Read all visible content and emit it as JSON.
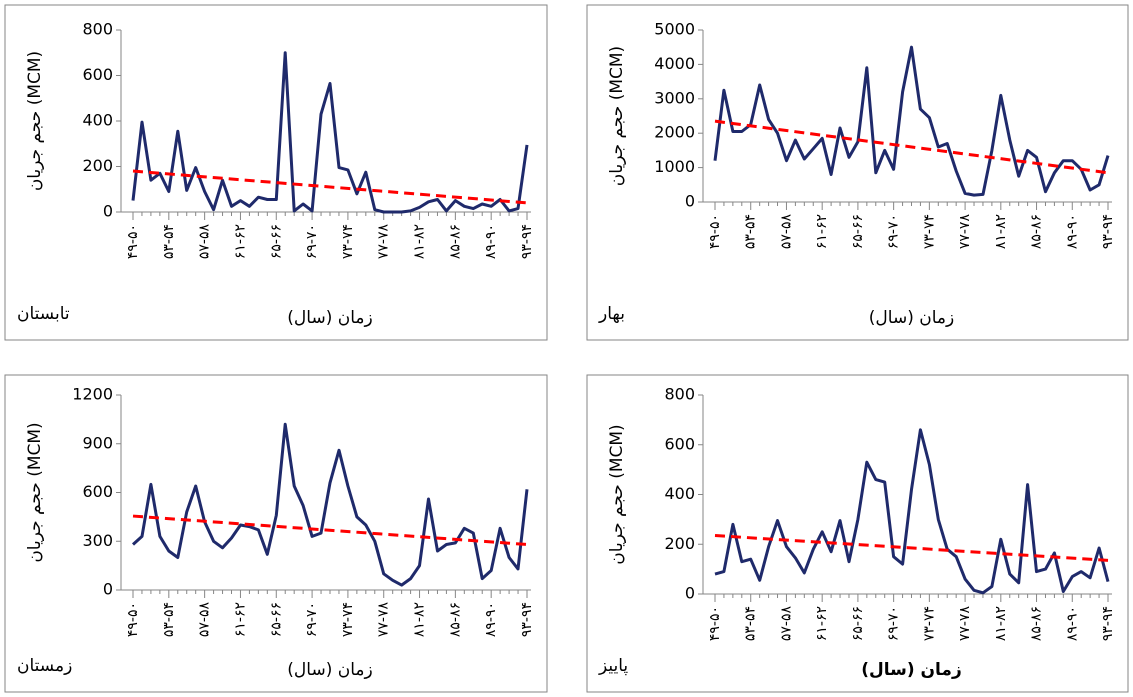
{
  "chart_data": [
    {
      "type": "line",
      "y_label": "حجم جریان (MCM)",
      "x_label": "زمان (سال)",
      "annotation": "تابستان",
      "categories": [
        "۴۹-۵۰",
        null,
        null,
        null,
        "۵۳-۵۴",
        null,
        null,
        null,
        "۵۷-۵۸",
        null,
        null,
        null,
        "۶۱-۶۲",
        null,
        null,
        null,
        "۶۵-۶۶",
        null,
        null,
        null,
        "۶۹-۷۰",
        null,
        null,
        null,
        "۷۳-۷۴",
        null,
        null,
        null,
        "۷۷-۷۸",
        null,
        null,
        null,
        "۸۱-۸۲",
        null,
        null,
        null,
        "۸۵-۸۶",
        null,
        null,
        null,
        "۸۹-۹۰",
        null,
        null,
        null,
        "۹۳-۹۴"
      ],
      "color": "#1f2a6b",
      "values": [
        50,
        395,
        140,
        170,
        90,
        355,
        95,
        195,
        90,
        10,
        140,
        25,
        50,
        25,
        65,
        55,
        55,
        700,
        5,
        35,
        5,
        430,
        565,
        195,
        185,
        80,
        175,
        10,
        0,
        0,
        0,
        5,
        20,
        45,
        55,
        5,
        50,
        25,
        15,
        35,
        25,
        55,
        5,
        15,
        295
      ],
      "trendline": {
        "color": "#ff0000",
        "values": [
          180,
          40
        ]
      },
      "ylim": [
        0,
        800
      ],
      "yticks": [
        0,
        200,
        400,
        600,
        800
      ]
    },
    {
      "type": "line",
      "y_label": "حجم جریان (MCM)",
      "x_label": "زمان (سال)",
      "annotation": "بهار",
      "categories": [
        "۴۹-۵۰",
        null,
        null,
        null,
        "۵۳-۵۴",
        null,
        null,
        null,
        "۵۷-۵۸",
        null,
        null,
        null,
        "۶۱-۶۲",
        null,
        null,
        null,
        "۶۵-۶۶",
        null,
        null,
        null,
        "۶۹-۷۰",
        null,
        null,
        null,
        "۷۳-۷۴",
        null,
        null,
        null,
        "۷۷-۷۸",
        null,
        null,
        null,
        "۸۱-۸۲",
        null,
        null,
        null,
        "۸۵-۸۶",
        null,
        null,
        null,
        "۸۹-۹۰",
        null,
        null,
        null,
        "۹۳-۹۴"
      ],
      "color": "#1f2a6b",
      "values": [
        1200,
        3250,
        2050,
        2050,
        2250,
        3400,
        2400,
        2000,
        1200,
        1800,
        1250,
        1550,
        1850,
        800,
        2150,
        1300,
        1750,
        3900,
        850,
        1500,
        950,
        3200,
        4500,
        2700,
        2450,
        1600,
        1700,
        900,
        250,
        200,
        220,
        1500,
        3100,
        1800,
        750,
        1500,
        1300,
        300,
        850,
        1200,
        1200,
        950,
        350,
        500,
        1350
      ],
      "trendline": {
        "color": "#ff0000",
        "values": [
          2350,
          850
        ]
      },
      "ylim": [
        0,
        5000
      ],
      "yticks": [
        0,
        1000,
        2000,
        3000,
        4000,
        5000
      ]
    },
    {
      "type": "line",
      "y_label": "حجم جریان (MCM)",
      "x_label": "زمان (سال)",
      "annotation": "زمستان",
      "categories": [
        "۴۹-۵۰",
        null,
        null,
        null,
        "۵۳-۵۴",
        null,
        null,
        null,
        "۵۷-۵۸",
        null,
        null,
        null,
        "۶۱-۶۲",
        null,
        null,
        null,
        "۶۵-۶۶",
        null,
        null,
        null,
        "۶۹-۷۰",
        null,
        null,
        null,
        "۷۳-۷۴",
        null,
        null,
        null,
        "۷۷-۷۸",
        null,
        null,
        null,
        "۸۱-۸۲",
        null,
        null,
        null,
        "۸۵-۸۶",
        null,
        null,
        null,
        "۸۹-۹۰",
        null,
        null,
        null,
        "۹۳-۹۴"
      ],
      "color": "#1f2a6b",
      "values": [
        280,
        330,
        650,
        330,
        240,
        200,
        480,
        640,
        420,
        300,
        260,
        320,
        400,
        390,
        370,
        220,
        460,
        1020,
        640,
        520,
        330,
        350,
        660,
        860,
        640,
        450,
        400,
        300,
        100,
        60,
        30,
        70,
        150,
        560,
        240,
        280,
        290,
        380,
        350,
        70,
        120,
        380,
        200,
        130,
        620
      ],
      "trendline": {
        "color": "#ff0000",
        "values": [
          455,
          280
        ]
      },
      "ylim": [
        0,
        1200
      ],
      "yticks": [
        0,
        300,
        600,
        900,
        1200
      ]
    },
    {
      "type": "line",
      "y_label": "حجم جریان (MCM)",
      "x_label": "زمان (سال)",
      "annotation": "پاییز",
      "categories": [
        "۴۹-۵۰",
        null,
        null,
        null,
        "۵۳-۵۴",
        null,
        null,
        null,
        "۵۷-۵۸",
        null,
        null,
        null,
        "۶۱-۶۲",
        null,
        null,
        null,
        "۶۵-۶۶",
        null,
        null,
        null,
        "۶۹-۷۰",
        null,
        null,
        null,
        "۷۳-۷۴",
        null,
        null,
        null,
        "۷۷-۷۸",
        null,
        null,
        null,
        "۸۱-۸۲",
        null,
        null,
        null,
        "۸۵-۸۶",
        null,
        null,
        null,
        "۸۹-۹۰",
        null,
        null,
        null,
        "۹۳-۹۴"
      ],
      "color": "#1f2a6b",
      "values": [
        80,
        90,
        280,
        130,
        140,
        55,
        190,
        295,
        190,
        145,
        85,
        180,
        250,
        170,
        295,
        130,
        300,
        530,
        460,
        450,
        150,
        120,
        420,
        660,
        520,
        300,
        180,
        150,
        60,
        15,
        5,
        30,
        220,
        80,
        45,
        440,
        90,
        100,
        165,
        10,
        70,
        90,
        65,
        185,
        50
      ],
      "trendline": {
        "color": "#ff0000",
        "values": [
          235,
          135
        ]
      },
      "ylim": [
        0,
        800
      ],
      "yticks": [
        0,
        200,
        400,
        600,
        800
      ]
    }
  ]
}
